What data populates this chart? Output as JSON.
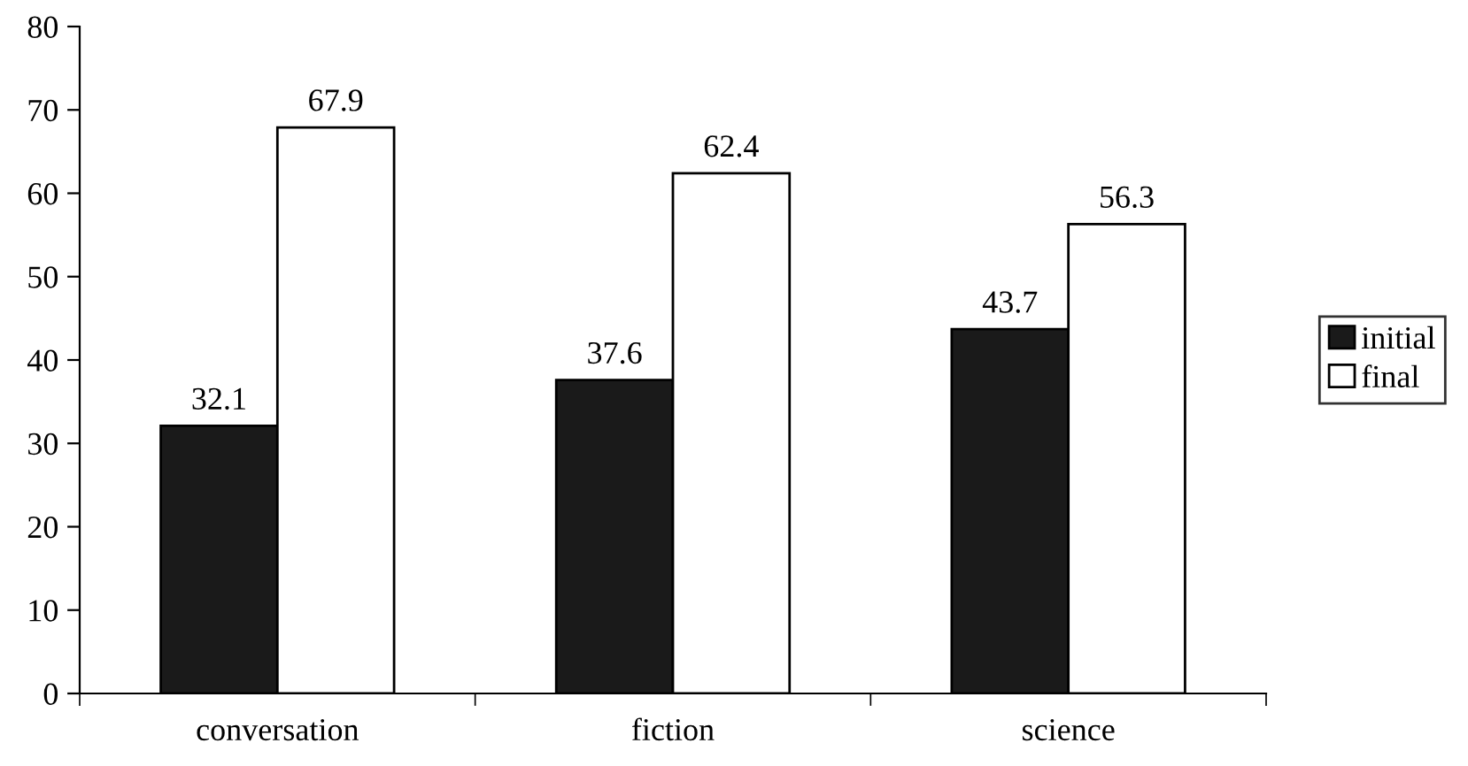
{
  "chart_data": {
    "type": "bar",
    "categories": [
      "conversation",
      "fiction",
      "science"
    ],
    "series": [
      {
        "name": "initial",
        "color": "#1a1a1a",
        "values": [
          32.1,
          37.6,
          43.7
        ]
      },
      {
        "name": "final",
        "color": "#ffffff",
        "values": [
          67.9,
          62.4,
          56.3
        ]
      }
    ],
    "ylim": [
      0,
      80
    ],
    "yticks": [
      0,
      10,
      20,
      30,
      40,
      50,
      60,
      70,
      80
    ],
    "data_labels": true,
    "legend": "right",
    "grid": false
  }
}
